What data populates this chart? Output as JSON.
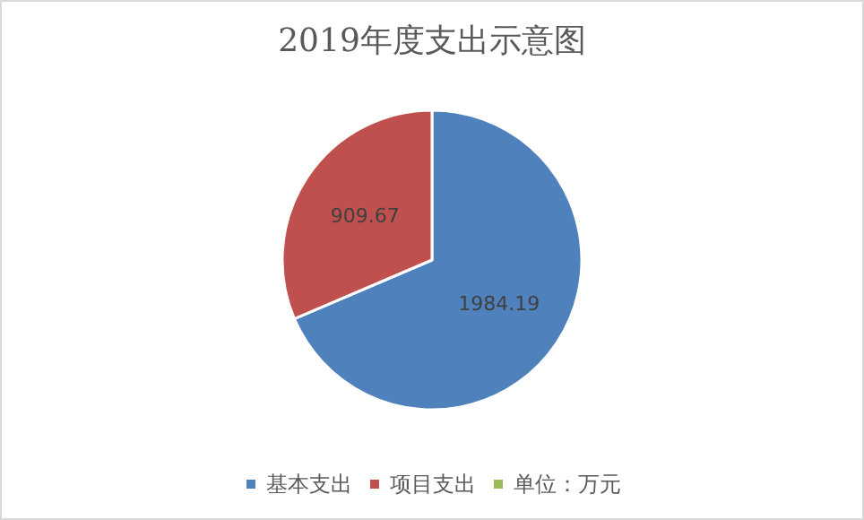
{
  "chart_data": {
    "type": "pie",
    "title": "2019年度支出示意图",
    "categories": [
      "基本支出",
      "项目支出",
      "单位：万元"
    ],
    "values": [
      1984.19,
      909.67,
      null
    ],
    "colors": [
      "#4f81bd",
      "#c0504d",
      "#9bbb59"
    ],
    "data_labels": true,
    "legend": "bottom"
  }
}
